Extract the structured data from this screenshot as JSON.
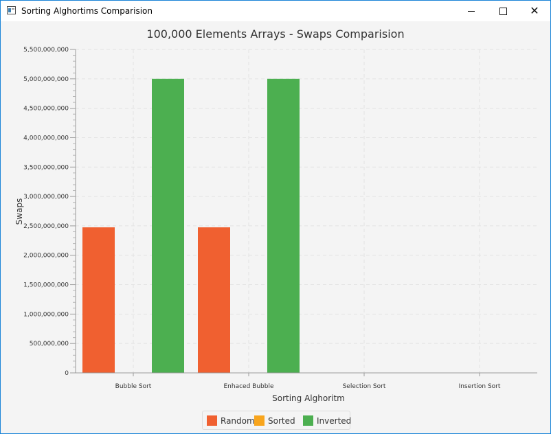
{
  "window": {
    "title": "Sorting Alghortims Comparision",
    "minimize_icon": "minimize-icon",
    "maximize_icon": "maximize-icon",
    "close_icon": "close-icon"
  },
  "chart_data": {
    "type": "bar",
    "title": "100,000 Elements Arrays - Swaps Comparision",
    "xlabel": "Sorting Alghoritm",
    "ylabel": "Swaps",
    "categories": [
      "Bubble Sort",
      "Enhaced Bubble",
      "Selection Sort",
      "Insertion Sort"
    ],
    "series": [
      {
        "name": "Random",
        "color": "#f06030",
        "values": [
          2475000000,
          2475000000,
          0,
          0
        ]
      },
      {
        "name": "Sorted",
        "color": "#f8a51d",
        "values": [
          0,
          0,
          0,
          0
        ]
      },
      {
        "name": "Inverted",
        "color": "#4caf50",
        "values": [
          5000000000,
          5000000000,
          0,
          0
        ]
      }
    ],
    "ylim": [
      0,
      5500000000
    ],
    "yticks": [
      0,
      500000000,
      1000000000,
      1500000000,
      2000000000,
      2500000000,
      3000000000,
      3500000000,
      4000000000,
      4500000000,
      5000000000,
      5500000000
    ],
    "ytick_labels": [
      "0",
      "500,000,000",
      "1,000,000,000",
      "1,500,000,000",
      "2,000,000,000",
      "2,500,000,000",
      "3,000,000,000",
      "3,500,000,000",
      "4,000,000,000",
      "4,500,000,000",
      "5,000,000,000",
      "5,500,000,000"
    ],
    "grid": true,
    "legend_position": "bottom"
  }
}
